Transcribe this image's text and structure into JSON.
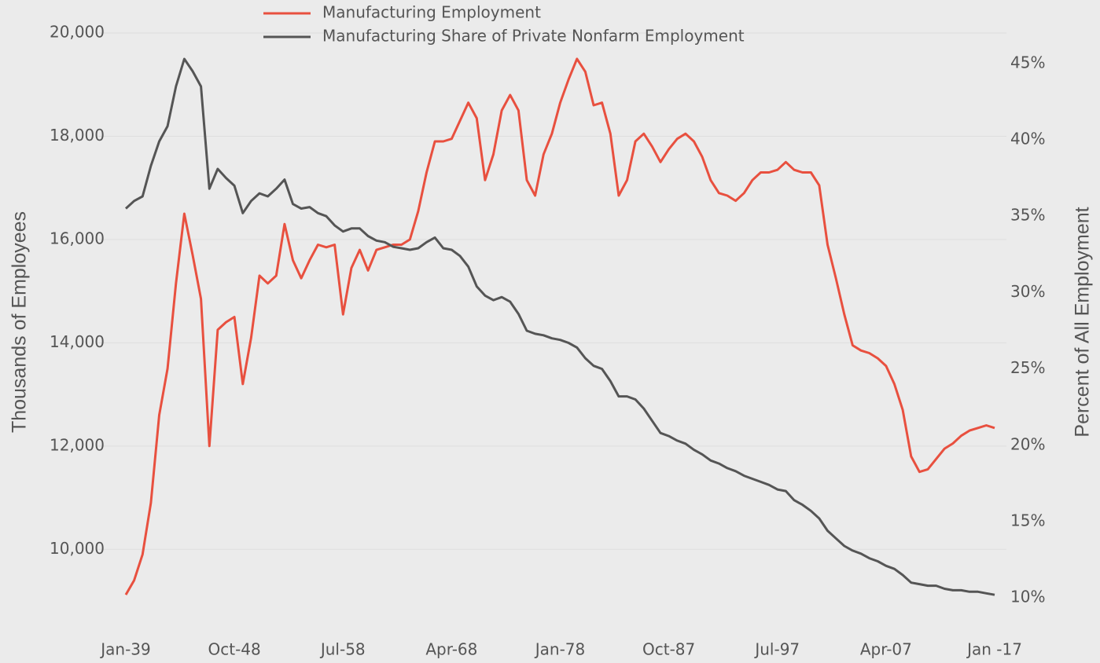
{
  "chart_data": {
    "type": "line",
    "ylabel": "Thousands of Employees",
    "y2label": "Percent of All Employment",
    "categories": [
      "Jan-39",
      null,
      null,
      null,
      null,
      null,
      null,
      null,
      null,
      null,
      null,
      null,
      null,
      "Oct-48",
      null,
      null,
      null,
      null,
      null,
      null,
      null,
      null,
      null,
      null,
      null,
      null,
      "Jul-58",
      null,
      null,
      null,
      null,
      null,
      null,
      null,
      null,
      null,
      null,
      null,
      null,
      "Apr-68",
      null,
      null,
      null,
      null,
      null,
      null,
      null,
      null,
      null,
      null,
      null,
      null,
      "Jan-78",
      null,
      null,
      null,
      null,
      null,
      null,
      null,
      null,
      null,
      null,
      null,
      null,
      "Oct-87",
      null,
      null,
      null,
      null,
      null,
      null,
      null,
      null,
      null,
      null,
      null,
      null,
      "Jul-97",
      null,
      null,
      null,
      null,
      null,
      null,
      null,
      null,
      null,
      null,
      null,
      null,
      "Apr-07",
      null,
      null,
      null,
      null,
      null,
      null,
      null,
      null,
      null,
      null,
      null,
      null,
      "Jan -17"
    ],
    "series": [
      {
        "name": "Manufacturing Employment",
        "color": "#e8503f",
        "values": [
          9120,
          9400,
          9900,
          10900,
          12600,
          13500,
          15150,
          16500,
          15700,
          14850,
          12000,
          14250,
          14400,
          14500,
          13200,
          14100,
          15300,
          15150,
          15300,
          16300,
          15600,
          15250,
          15600,
          15900,
          15850,
          15900,
          14550,
          15450,
          15800,
          15400,
          15800,
          15850,
          15900,
          15900,
          16000,
          16550,
          17300,
          17900,
          17900,
          17950,
          18300,
          18650,
          18350,
          17150,
          17650,
          18500,
          18800,
          18500,
          17150,
          16850,
          17650,
          18050,
          18650,
          19100,
          19500,
          19250,
          18600,
          18650,
          18050,
          16850,
          17150,
          17900,
          18050,
          17800,
          17500,
          17750,
          17950,
          18050,
          17900,
          17600,
          17150,
          16900,
          16850,
          16750,
          16900,
          17150,
          17300,
          17300,
          17350,
          17500,
          17350,
          17300,
          17300,
          17050,
          15900,
          15250,
          14550,
          13950,
          13850,
          13800,
          13700,
          13550,
          13200,
          12700,
          11800,
          11500,
          11550,
          11750,
          11950,
          12050,
          12200,
          12300,
          12350,
          12400,
          12350
        ]
      },
      {
        "name": "Manufacturing Share of Private Nonfarm Employment",
        "color": "#555555",
        "axis": "y2",
        "values": [
          35.5,
          36.0,
          36.3,
          38.3,
          39.9,
          40.9,
          43.5,
          45.3,
          44.5,
          43.5,
          36.8,
          38.1,
          37.5,
          37.0,
          35.2,
          36.0,
          36.5,
          36.3,
          36.8,
          37.4,
          35.8,
          35.5,
          35.6,
          35.2,
          35.0,
          34.4,
          34.0,
          34.2,
          34.2,
          33.7,
          33.4,
          33.3,
          33.0,
          32.9,
          32.8,
          32.9,
          33.3,
          33.6,
          32.9,
          32.8,
          32.4,
          31.7,
          30.4,
          29.8,
          29.5,
          29.7,
          29.4,
          28.6,
          27.5,
          27.3,
          27.2,
          27.0,
          26.9,
          26.7,
          26.4,
          25.7,
          25.2,
          25.0,
          24.2,
          23.2,
          23.2,
          23.0,
          22.4,
          21.6,
          20.8,
          20.6,
          20.3,
          20.1,
          19.7,
          19.4,
          19.0,
          18.8,
          18.5,
          18.3,
          18.0,
          17.8,
          17.6,
          17.4,
          17.1,
          17.0,
          16.4,
          16.1,
          15.7,
          15.2,
          14.4,
          13.9,
          13.4,
          13.1,
          12.9,
          12.6,
          12.4,
          12.1,
          11.9,
          11.5,
          11.0,
          10.9,
          10.8,
          10.8,
          10.6,
          10.5,
          10.5,
          10.4,
          10.4,
          10.3,
          10.2
        ]
      }
    ],
    "ylim": [
      9000,
      20000
    ],
    "yticks": [
      {
        "value": 10000,
        "label": "10,000"
      },
      {
        "value": 12000,
        "label": "12,000"
      },
      {
        "value": 14000,
        "label": "14,000"
      },
      {
        "value": 16000,
        "label": "16,000"
      },
      {
        "value": 18000,
        "label": "18,000"
      },
      {
        "value": 20000,
        "label": "20,000"
      }
    ],
    "y2lim": [
      9.8,
      47
    ],
    "y2ticks": [
      {
        "value": 10,
        "label": "10%"
      },
      {
        "value": 15,
        "label": "15%"
      },
      {
        "value": 20,
        "label": "20%"
      },
      {
        "value": 25,
        "label": "25%"
      },
      {
        "value": 30,
        "label": "30%"
      },
      {
        "value": 35,
        "label": "35%"
      },
      {
        "value": 40,
        "label": "40%"
      },
      {
        "value": 45,
        "label": "45%"
      }
    ],
    "grid": true,
    "legend": "top"
  }
}
